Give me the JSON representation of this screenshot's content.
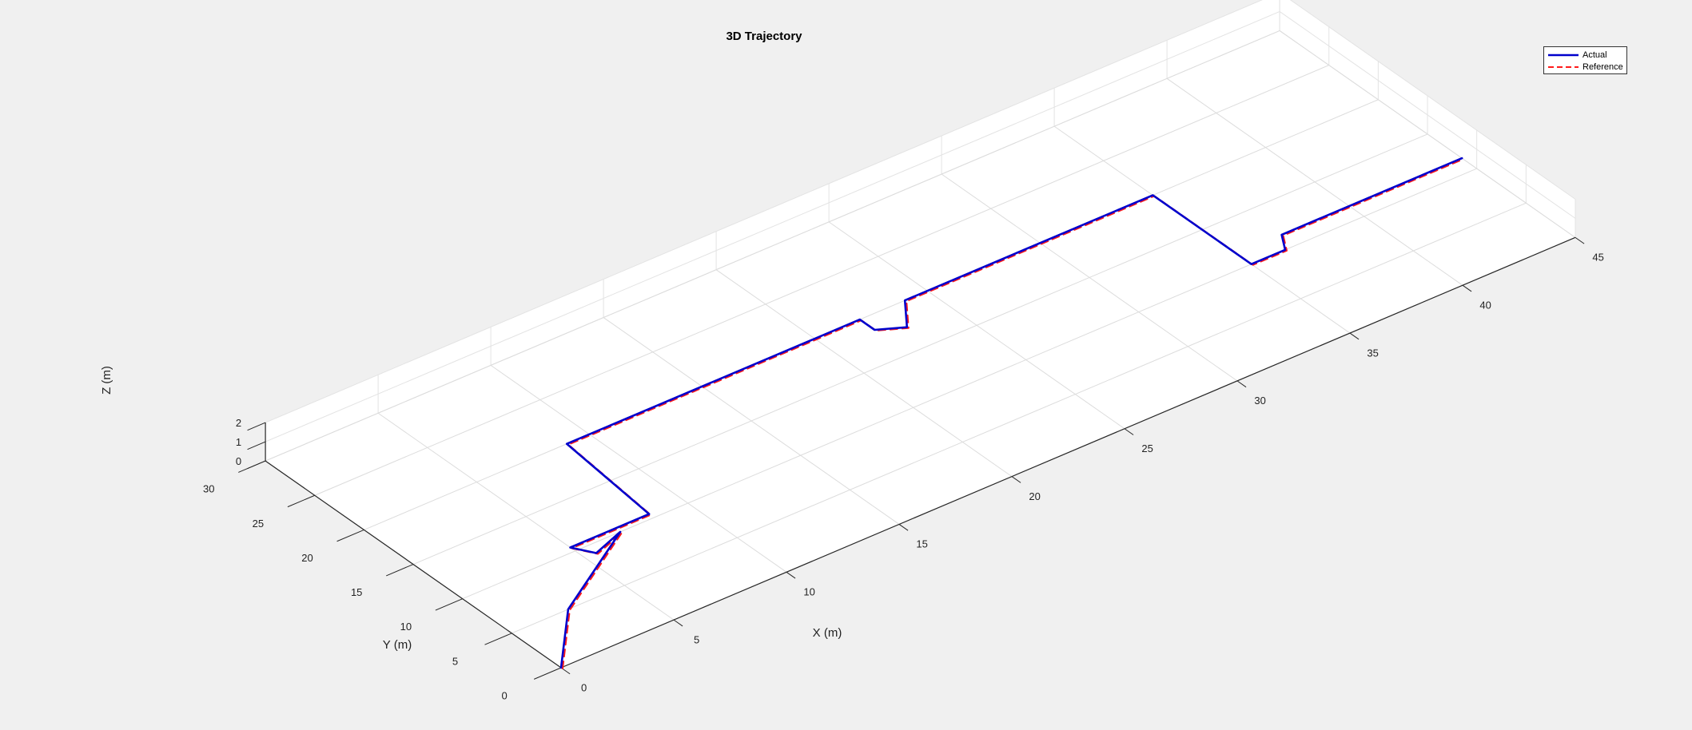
{
  "chart_data": {
    "type": "line",
    "projection": "3d",
    "title": "3D Trajectory",
    "xlabel": "X (m)",
    "ylabel": "Y (m)",
    "zlabel": "Z (m)",
    "xlim": [
      0,
      45
    ],
    "ylim": [
      0,
      30
    ],
    "zlim": [
      0,
      2
    ],
    "xticks": [
      "0",
      "5",
      "10",
      "15",
      "20",
      "25",
      "30",
      "35",
      "40",
      "45"
    ],
    "yticks": [
      "0",
      "5",
      "10",
      "15",
      "20",
      "25",
      "30"
    ],
    "zticks": [
      "0",
      "1",
      "2"
    ],
    "grid": true,
    "legend_location": "top-right",
    "series": [
      {
        "name": "Actual",
        "color": "#0000cc",
        "style": "solid",
        "x": [
          0,
          2.5,
          7,
          5.5,
          5,
          8.5,
          9,
          22,
          22,
          23,
          24,
          35,
          35,
          36.5,
          37,
          45
        ],
        "y": [
          0,
          5,
          10,
          9,
          10.5,
          10.5,
          20,
          20,
          18.5,
          17.5,
          20,
          20,
          10,
          10,
          11.5,
          11.5
        ],
        "z": [
          0,
          0,
          0,
          0,
          0,
          0,
          0,
          0,
          0,
          0,
          0,
          0,
          0,
          0,
          0,
          0
        ]
      },
      {
        "name": "Reference",
        "color": "#ff1a1a",
        "style": "dashed",
        "x": [
          0,
          2.5,
          7,
          5.5,
          5,
          8.5,
          9,
          22,
          22,
          23,
          24,
          35,
          35,
          36.5,
          37,
          45
        ],
        "y": [
          0,
          5,
          10,
          9,
          10.5,
          10.5,
          20,
          20,
          18.5,
          17.5,
          20,
          20,
          10,
          10,
          11.5,
          11.5
        ],
        "z": [
          0,
          0,
          0,
          0,
          0,
          0,
          0,
          0,
          0,
          0,
          0,
          0,
          0,
          0,
          0,
          0
        ]
      }
    ]
  }
}
